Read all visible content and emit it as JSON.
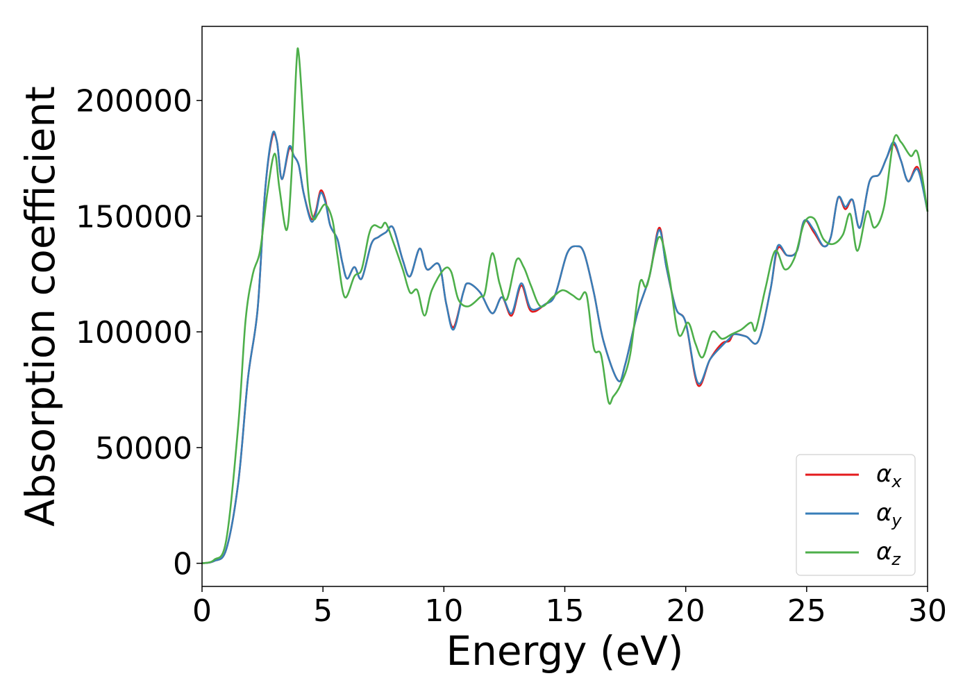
{
  "chart_data": {
    "type": "line",
    "title": "",
    "xlabel": "Energy (eV)",
    "ylabel": "Absorption coefficient",
    "xlim": [
      0,
      30
    ],
    "ylim": [
      -10000,
      232000
    ],
    "x_ticks": [
      0,
      5,
      10,
      15,
      20,
      25,
      30
    ],
    "y_ticks": [
      0,
      50000,
      100000,
      150000,
      200000
    ],
    "x_tick_labels": [
      "0",
      "5",
      "10",
      "15",
      "20",
      "25",
      "30"
    ],
    "y_tick_labels": [
      "0",
      "50000",
      "100000",
      "150000",
      "200000"
    ],
    "grid": false,
    "legend_position": "lower-right",
    "series": [
      {
        "name": "αx",
        "symbol": "α",
        "subscript": "x",
        "color": "#e41a1c",
        "points": [
          [
            0,
            0
          ],
          [
            0.5,
            1000
          ],
          [
            1.0,
            6000
          ],
          [
            1.5,
            35000
          ],
          [
            1.9,
            80000
          ],
          [
            2.3,
            110000
          ],
          [
            2.6,
            160000
          ],
          [
            2.9,
            184000
          ],
          [
            3.1,
            182000
          ],
          [
            3.3,
            166000
          ],
          [
            3.6,
            179000
          ],
          [
            3.8,
            176000
          ],
          [
            4.0,
            172000
          ],
          [
            4.2,
            160000
          ],
          [
            4.5,
            149000
          ],
          [
            4.7,
            152000
          ],
          [
            4.9,
            161000
          ],
          [
            5.1,
            157000
          ],
          [
            5.3,
            146000
          ],
          [
            5.6,
            140000
          ],
          [
            5.8,
            130000
          ],
          [
            6.0,
            123000
          ],
          [
            6.3,
            128000
          ],
          [
            6.6,
            123000
          ],
          [
            7.0,
            138000
          ],
          [
            7.3,
            141000
          ],
          [
            7.6,
            143000
          ],
          [
            7.9,
            145000
          ],
          [
            8.3,
            131000
          ],
          [
            8.6,
            124000
          ],
          [
            9.0,
            136000
          ],
          [
            9.3,
            127000
          ],
          [
            9.8,
            129000
          ],
          [
            10.1,
            112000
          ],
          [
            10.4,
            102000
          ],
          [
            10.8,
            117000
          ],
          [
            11.0,
            121000
          ],
          [
            11.5,
            117000
          ],
          [
            12.0,
            108000
          ],
          [
            12.4,
            115000
          ],
          [
            12.8,
            107000
          ],
          [
            13.2,
            120000
          ],
          [
            13.6,
            109000
          ],
          [
            14.2,
            112000
          ],
          [
            14.6,
            116000
          ],
          [
            15.1,
            134000
          ],
          [
            15.5,
            137000
          ],
          [
            15.8,
            134000
          ],
          [
            16.2,
            117000
          ],
          [
            16.6,
            96000
          ],
          [
            17.2,
            79000
          ],
          [
            17.5,
            86000
          ],
          [
            18.0,
            108000
          ],
          [
            18.5,
            124000
          ],
          [
            18.9,
            145000
          ],
          [
            19.2,
            128000
          ],
          [
            19.6,
            110000
          ],
          [
            20.0,
            104000
          ],
          [
            20.5,
            77000
          ],
          [
            21.0,
            88000
          ],
          [
            21.5,
            95000
          ],
          [
            21.8,
            96000
          ],
          [
            22.0,
            99000
          ],
          [
            22.5,
            98000
          ],
          [
            23.0,
            96000
          ],
          [
            23.5,
            118000
          ],
          [
            23.8,
            136000
          ],
          [
            24.2,
            133000
          ],
          [
            24.6,
            135000
          ],
          [
            24.9,
            148000
          ],
          [
            25.3,
            143000
          ],
          [
            25.7,
            137000
          ],
          [
            26.0,
            141000
          ],
          [
            26.3,
            158000
          ],
          [
            26.6,
            153000
          ],
          [
            26.9,
            157000
          ],
          [
            27.2,
            145000
          ],
          [
            27.6,
            165000
          ],
          [
            28.0,
            168000
          ],
          [
            28.3,
            175000
          ],
          [
            28.6,
            181000
          ],
          [
            28.9,
            174000
          ],
          [
            29.2,
            165000
          ],
          [
            29.6,
            171000
          ],
          [
            30.0,
            152000
          ]
        ]
      },
      {
        "name": "αy",
        "symbol": "α",
        "subscript": "y",
        "color": "#377eb8",
        "points": [
          [
            0,
            0
          ],
          [
            0.5,
            1000
          ],
          [
            1.0,
            6000
          ],
          [
            1.5,
            35000
          ],
          [
            1.9,
            80000
          ],
          [
            2.3,
            110000
          ],
          [
            2.6,
            160000
          ],
          [
            2.9,
            185000
          ],
          [
            3.1,
            182000
          ],
          [
            3.3,
            166000
          ],
          [
            3.6,
            180000
          ],
          [
            3.8,
            176000
          ],
          [
            4.0,
            172000
          ],
          [
            4.2,
            160000
          ],
          [
            4.5,
            148000
          ],
          [
            4.7,
            151000
          ],
          [
            4.9,
            160000
          ],
          [
            5.1,
            156000
          ],
          [
            5.3,
            146000
          ],
          [
            5.6,
            140000
          ],
          [
            5.8,
            130000
          ],
          [
            6.0,
            123000
          ],
          [
            6.3,
            128000
          ],
          [
            6.6,
            123000
          ],
          [
            7.0,
            138000
          ],
          [
            7.3,
            141000
          ],
          [
            7.6,
            143000
          ],
          [
            7.9,
            145000
          ],
          [
            8.3,
            131000
          ],
          [
            8.6,
            124000
          ],
          [
            9.0,
            136000
          ],
          [
            9.3,
            127000
          ],
          [
            9.8,
            129000
          ],
          [
            10.1,
            112000
          ],
          [
            10.4,
            101000
          ],
          [
            10.8,
            117000
          ],
          [
            11.0,
            121000
          ],
          [
            11.5,
            117000
          ],
          [
            12.0,
            108000
          ],
          [
            12.4,
            115000
          ],
          [
            12.8,
            108000
          ],
          [
            13.2,
            121000
          ],
          [
            13.6,
            110000
          ],
          [
            14.2,
            112000
          ],
          [
            14.6,
            116000
          ],
          [
            15.1,
            134000
          ],
          [
            15.5,
            137000
          ],
          [
            15.8,
            134000
          ],
          [
            16.2,
            117000
          ],
          [
            16.6,
            96000
          ],
          [
            17.2,
            79000
          ],
          [
            17.5,
            86000
          ],
          [
            18.0,
            108000
          ],
          [
            18.5,
            124000
          ],
          [
            18.9,
            144000
          ],
          [
            19.2,
            128000
          ],
          [
            19.6,
            110000
          ],
          [
            20.0,
            104000
          ],
          [
            20.5,
            78000
          ],
          [
            21.0,
            88000
          ],
          [
            21.5,
            94000
          ],
          [
            21.8,
            97000
          ],
          [
            22.0,
            99000
          ],
          [
            22.5,
            98000
          ],
          [
            23.0,
            96000
          ],
          [
            23.5,
            118000
          ],
          [
            23.8,
            137000
          ],
          [
            24.2,
            133000
          ],
          [
            24.6,
            135000
          ],
          [
            24.9,
            148000
          ],
          [
            25.3,
            144000
          ],
          [
            25.7,
            137000
          ],
          [
            26.0,
            141000
          ],
          [
            26.3,
            158000
          ],
          [
            26.6,
            154000
          ],
          [
            26.9,
            157000
          ],
          [
            27.2,
            145000
          ],
          [
            27.6,
            165000
          ],
          [
            28.0,
            168000
          ],
          [
            28.3,
            175000
          ],
          [
            28.6,
            182000
          ],
          [
            28.9,
            174000
          ],
          [
            29.2,
            165000
          ],
          [
            29.6,
            170000
          ],
          [
            30.0,
            152000
          ]
        ]
      },
      {
        "name": "αz",
        "symbol": "α",
        "subscript": "z",
        "color": "#4daf4a",
        "points": [
          [
            0,
            0
          ],
          [
            0.5,
            1500
          ],
          [
            1.0,
            10000
          ],
          [
            1.5,
            60000
          ],
          [
            1.8,
            105000
          ],
          [
            2.1,
            125000
          ],
          [
            2.4,
            135000
          ],
          [
            2.7,
            160000
          ],
          [
            3.0,
            177000
          ],
          [
            3.2,
            162000
          ],
          [
            3.5,
            144000
          ],
          [
            3.7,
            168000
          ],
          [
            3.9,
            215000
          ],
          [
            4.0,
            220000
          ],
          [
            4.2,
            190000
          ],
          [
            4.4,
            160000
          ],
          [
            4.6,
            149000
          ],
          [
            4.8,
            151000
          ],
          [
            5.1,
            155000
          ],
          [
            5.4,
            148000
          ],
          [
            5.6,
            133000
          ],
          [
            5.9,
            115000
          ],
          [
            6.3,
            124000
          ],
          [
            6.6,
            127000
          ],
          [
            6.9,
            142000
          ],
          [
            7.1,
            146000
          ],
          [
            7.4,
            145000
          ],
          [
            7.6,
            147000
          ],
          [
            7.9,
            139000
          ],
          [
            8.3,
            127000
          ],
          [
            8.6,
            117000
          ],
          [
            8.9,
            118000
          ],
          [
            9.2,
            107000
          ],
          [
            9.5,
            118000
          ],
          [
            10.0,
            127000
          ],
          [
            10.3,
            126000
          ],
          [
            10.6,
            114000
          ],
          [
            11.0,
            111000
          ],
          [
            11.5,
            115000
          ],
          [
            11.7,
            117000
          ],
          [
            12.0,
            134000
          ],
          [
            12.3,
            121000
          ],
          [
            12.6,
            114000
          ],
          [
            13.0,
            131000
          ],
          [
            13.3,
            128000
          ],
          [
            13.6,
            120000
          ],
          [
            14.0,
            111000
          ],
          [
            14.5,
            115000
          ],
          [
            14.9,
            118000
          ],
          [
            15.3,
            116000
          ],
          [
            15.6,
            114000
          ],
          [
            15.9,
            116000
          ],
          [
            16.2,
            93000
          ],
          [
            16.5,
            90000
          ],
          [
            16.8,
            70000
          ],
          [
            17.0,
            72000
          ],
          [
            17.3,
            77000
          ],
          [
            17.7,
            90000
          ],
          [
            18.1,
            121000
          ],
          [
            18.4,
            120000
          ],
          [
            18.9,
            141000
          ],
          [
            19.3,
            125000
          ],
          [
            19.7,
            99000
          ],
          [
            20.1,
            104000
          ],
          [
            20.4,
            95000
          ],
          [
            20.7,
            89000
          ],
          [
            21.1,
            100000
          ],
          [
            21.5,
            97000
          ],
          [
            21.9,
            99000
          ],
          [
            22.3,
            101000
          ],
          [
            22.7,
            104000
          ],
          [
            22.9,
            101000
          ],
          [
            23.3,
            119000
          ],
          [
            23.7,
            135000
          ],
          [
            24.1,
            127000
          ],
          [
            24.5,
            132000
          ],
          [
            24.9,
            147000
          ],
          [
            25.3,
            149000
          ],
          [
            25.7,
            140000
          ],
          [
            26.1,
            138000
          ],
          [
            26.5,
            142000
          ],
          [
            26.8,
            151000
          ],
          [
            27.1,
            135000
          ],
          [
            27.5,
            152000
          ],
          [
            27.8,
            145000
          ],
          [
            28.2,
            154000
          ],
          [
            28.6,
            183000
          ],
          [
            28.9,
            182000
          ],
          [
            29.3,
            176000
          ],
          [
            29.6,
            177000
          ],
          [
            30.0,
            152000
          ]
        ]
      }
    ]
  }
}
